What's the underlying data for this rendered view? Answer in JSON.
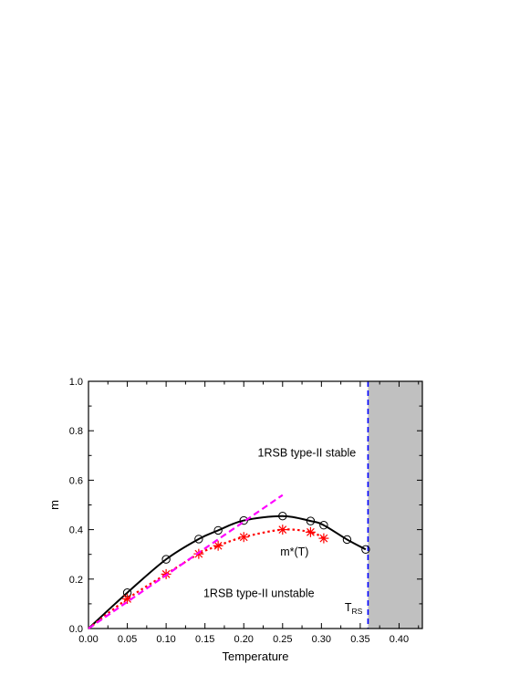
{
  "chart_data": {
    "type": "line",
    "xlabel": "Temperature",
    "ylabel": "m",
    "xlim": [
      0.0,
      0.43
    ],
    "ylim": [
      0.0,
      1.0
    ],
    "xticks": [
      "0.00",
      "0.05",
      "0.10",
      "0.15",
      "0.20",
      "0.25",
      "0.30",
      "0.35",
      "0.40"
    ],
    "yticks": [
      "0.0",
      "0.2",
      "0.4",
      "0.6",
      "0.8",
      "1.0"
    ],
    "grid": false,
    "series": [
      {
        "style": "solid",
        "color": "#000000",
        "marker": "open-circle",
        "x": [
          0.0,
          0.05,
          0.1,
          0.142,
          0.167,
          0.2,
          0.25,
          0.286,
          0.303,
          0.333,
          0.357
        ],
        "y": [
          0.0,
          0.145,
          0.28,
          0.362,
          0.397,
          0.437,
          0.455,
          0.435,
          0.418,
          0.36,
          0.32
        ]
      },
      {
        "style": "dotted",
        "color": "#ff0000",
        "marker": "asterisk",
        "x": [
          0.0,
          0.05,
          0.1,
          0.142,
          0.167,
          0.2,
          0.25,
          0.286,
          0.303
        ],
        "y": [
          0.0,
          0.12,
          0.22,
          0.302,
          0.335,
          0.37,
          0.4,
          0.39,
          0.365
        ]
      },
      {
        "style": "dashed",
        "color": "#ff00ff",
        "marker": "none",
        "x": [
          0.0,
          0.25
        ],
        "y": [
          0.0,
          0.54
        ]
      }
    ],
    "vline": {
      "x": 0.36,
      "color": "#0000ff",
      "style": "dashed"
    },
    "shaded_region": {
      "x": [
        0.36,
        0.43
      ],
      "color": "#c0c0c0"
    },
    "annotations": {
      "stable": "1RSB type-II stable",
      "unstable": "1RSB type-II unstable",
      "mstar": "m*(T)",
      "trs_main": "T",
      "trs_sub": "RS"
    }
  }
}
